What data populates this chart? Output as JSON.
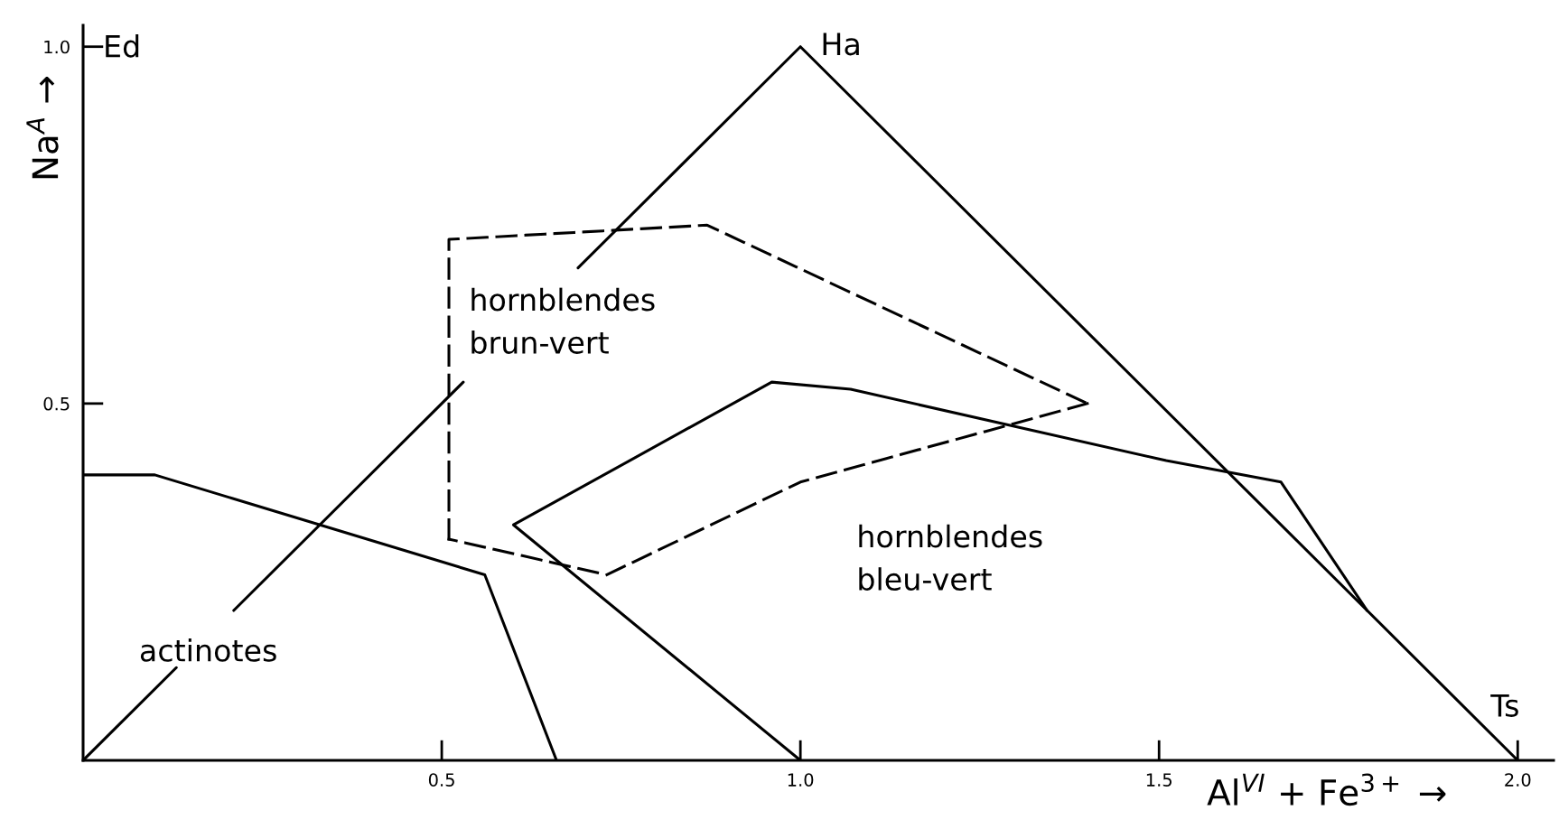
{
  "chart_data": {
    "type": "line",
    "xlabel": "Al$^{VI}$ + Fe$^{3+}$ →",
    "ylabel": "Na$^{A}$ →",
    "xlim": [
      0,
      2.05
    ],
    "ylim": [
      0,
      1.03
    ],
    "xticks": [
      0.5,
      {
        "value": 1,
        "label": "1.0"
      },
      1.5,
      {
        "value": 2,
        "label": "2.0"
      }
    ],
    "yticks": [
      0.5,
      {
        "value": 1,
        "label": "1.0"
      }
    ],
    "series": [
      {
        "color": "#000000",
        "line_style": "solid",
        "x": [
          0,
          0.13,
          0.17,
          0.21,
          0.53,
          0.61,
          0.69,
          1.0,
          2.0
        ],
        "values": [
          0,
          0.13,
          null,
          0.21,
          0.53,
          null,
          0.69,
          1.0,
          0
        ]
      },
      {
        "color": "#000000",
        "line_style": "solid",
        "x": [
          0,
          0.1,
          0.56,
          0.66
        ],
        "values": [
          0.4,
          0.4,
          0.26,
          0
        ]
      },
      {
        "color": "#000000",
        "line_style": "solid",
        "x": [
          1.0,
          0.6,
          0.96,
          1.07,
          1.51,
          1.67,
          1.79
        ],
        "values": [
          0,
          0.33,
          0.53,
          0.52,
          0.42,
          0.39,
          0.21
        ]
      },
      {
        "color": "#000000",
        "line_style": "dashed",
        "x": [
          0.51,
          0.51,
          0.87,
          1.4
        ],
        "values": [
          0.31,
          0.73,
          0.75,
          0.5
        ]
      },
      {
        "color": "#000000",
        "line_style": "dashed",
        "x": [
          1.4,
          1.0,
          0.73,
          0.51
        ],
        "values": [
          0.5,
          0.39,
          0.26,
          0.31
        ]
      }
    ],
    "annotations": [
      {
        "text": "Ha",
        "x": 1.0,
        "y": 1.0
      },
      {
        "text": "Ts",
        "x": 2.0,
        "y": 0
      },
      "Ed",
      "actinotes",
      "hornblendes\nbrun-vert",
      "hornblendes\nbleu-vert"
    ]
  }
}
